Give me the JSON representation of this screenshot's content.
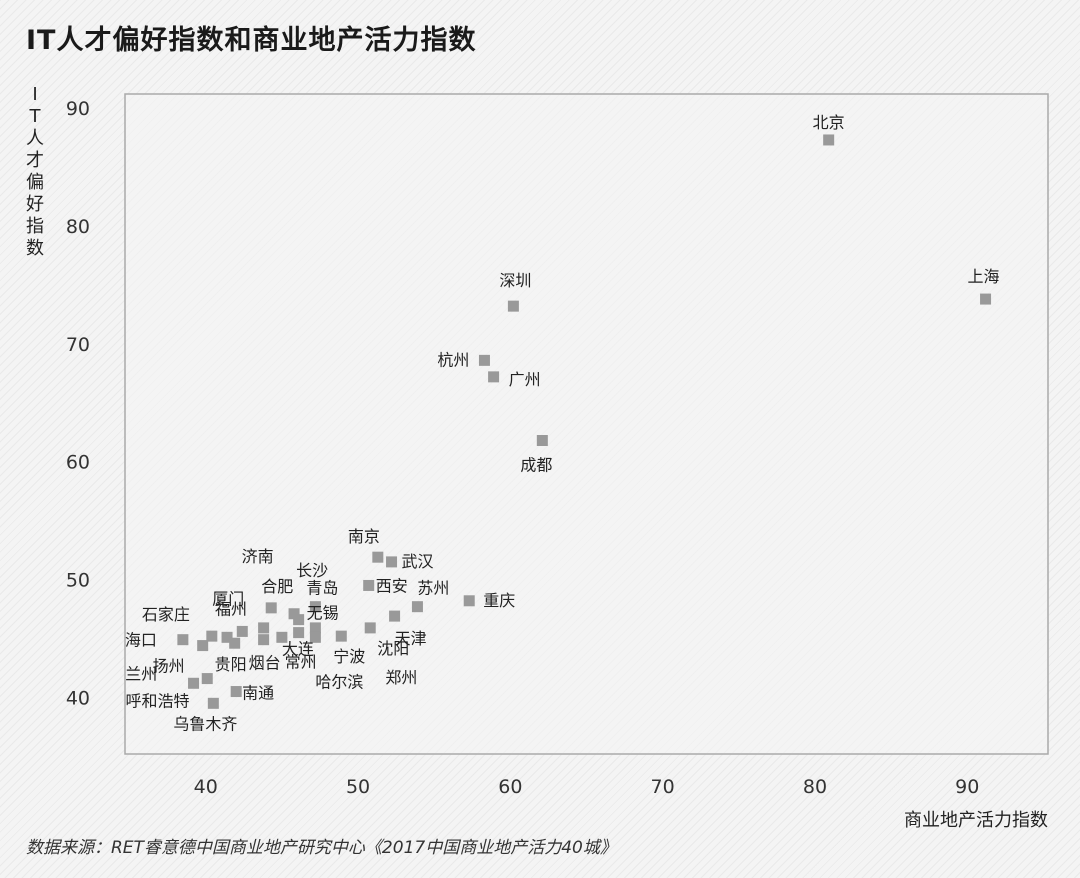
{
  "title": "IT人才偏好指数和商业地产活力指数",
  "source": "数据来源：RET睿意德中国商业地产研究中心《2017中国商业地产活力40城》",
  "chart_data": {
    "type": "scatter",
    "title": "IT人才偏好指数和商业地产活力指数",
    "xlabel": "商业地产活力指数",
    "ylabel": "IT人才偏好指数",
    "xlim": [
      34.7,
      95.3
    ],
    "ylim": [
      35.2,
      91.2
    ],
    "xticks": [
      40,
      50,
      60,
      70,
      80,
      90
    ],
    "yticks": [
      40,
      50,
      60,
      70,
      80,
      90
    ],
    "grid": false,
    "marker_color": "#999999",
    "points": [
      {
        "label": "北京",
        "x": 80.9,
        "y": 87.3
      },
      {
        "label": "上海",
        "x": 91.2,
        "y": 73.8
      },
      {
        "label": "深圳",
        "x": 60.2,
        "y": 73.2
      },
      {
        "label": "杭州",
        "x": 58.3,
        "y": 68.6
      },
      {
        "label": "广州",
        "x": 58.9,
        "y": 67.2
      },
      {
        "label": "成都",
        "x": 62.1,
        "y": 61.8
      },
      {
        "label": "南京",
        "x": 51.3,
        "y": 51.9
      },
      {
        "label": "武汉",
        "x": 52.2,
        "y": 51.5
      },
      {
        "label": "西安",
        "x": 50.7,
        "y": 49.5
      },
      {
        "label": "苏州",
        "x": 53.9,
        "y": 47.7
      },
      {
        "label": "重庆",
        "x": 57.3,
        "y": 48.2
      },
      {
        "label": "天津",
        "x": 52.4,
        "y": 46.9
      },
      {
        "label": "沈阳",
        "x": 50.8,
        "y": 45.9
      },
      {
        "label": "宁波",
        "x": 48.9,
        "y": 45.2
      },
      {
        "label": "郑州",
        "x": 47.2,
        "y": 45.9
      },
      {
        "label": "青岛",
        "x": 47.2,
        "y": 47.7
      },
      {
        "label": "无锡",
        "x": 46.1,
        "y": 46.6
      },
      {
        "label": "长沙",
        "x": 45.8,
        "y": 47.1
      },
      {
        "label": "哈尔滨",
        "x": 47.2,
        "y": 45.1
      },
      {
        "label": "常州",
        "x": 46.1,
        "y": 45.5
      },
      {
        "label": "大连",
        "x": 45.0,
        "y": 45.1
      },
      {
        "label": "合肥",
        "x": 44.3,
        "y": 47.6
      },
      {
        "label": "济南",
        "x": 43.8,
        "y": 45.9
      },
      {
        "label": "烟台",
        "x": 43.8,
        "y": 44.9
      },
      {
        "label": "厦门",
        "x": 42.4,
        "y": 45.6
      },
      {
        "label": "南通",
        "x": 42.0,
        "y": 40.5
      },
      {
        "label": "福州",
        "x": 41.4,
        "y": 45.1
      },
      {
        "label": "贵阳",
        "x": 41.9,
        "y": 44.6
      },
      {
        "label": "石家庄",
        "x": 40.4,
        "y": 45.2
      },
      {
        "label": "扬州",
        "x": 39.8,
        "y": 44.4
      },
      {
        "label": "兰州",
        "x": 40.1,
        "y": 41.6
      },
      {
        "label": "呼和浩特",
        "x": 39.2,
        "y": 41.2
      },
      {
        "label": "乌鲁木齐",
        "x": 40.5,
        "y": 39.5
      },
      {
        "label": "海口",
        "x": 38.5,
        "y": 44.9
      }
    ]
  }
}
